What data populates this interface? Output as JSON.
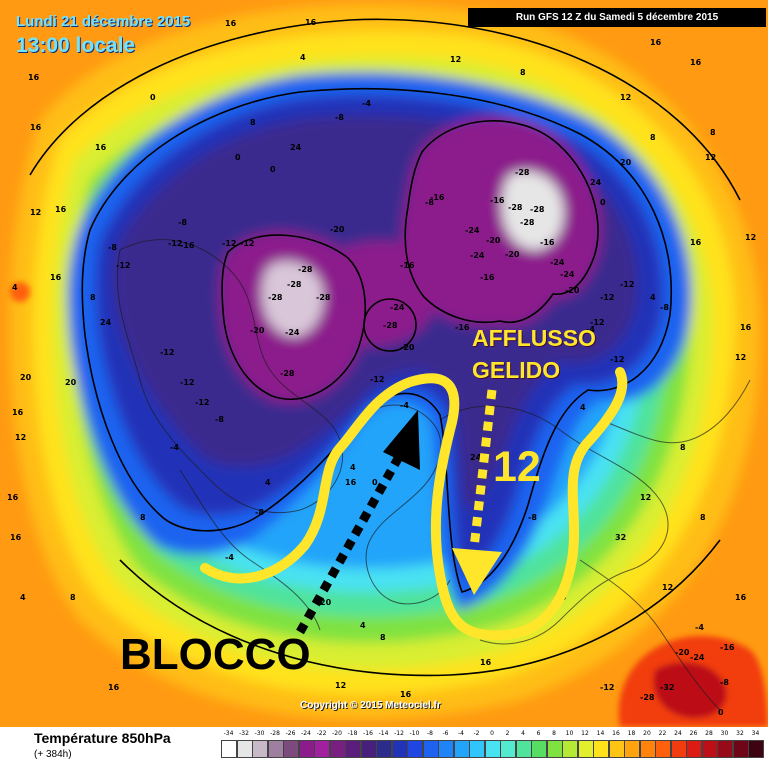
{
  "header": {
    "date": "Lundi 21 décembre 2015",
    "time": "13:00 locale",
    "run": "Run GFS 12 Z du Samedi 5 décembre 2015"
  },
  "copyright": "Copyright © 2015 Meteociel.fr",
  "annotations": {
    "inflow_line1": "AFFLUSSO",
    "inflow_line2": "GELIDO",
    "isotherm_value": "12",
    "block_label": "BLOCCO"
  },
  "colors": {
    "annotation_yellow": "#ffe62b",
    "annotation_black": "#000000",
    "header_cyan": "#6fe3ff"
  },
  "map_labels": [
    "16",
    "16",
    "16",
    "16",
    "16",
    "16",
    "16",
    "16",
    "16",
    "16",
    "16",
    "12",
    "12",
    "12",
    "12",
    "12",
    "12",
    "12",
    "8",
    "8",
    "8",
    "8",
    "8",
    "8",
    "8",
    "4",
    "4",
    "4",
    "4",
    "4",
    "0",
    "0",
    "0",
    "0",
    "-4",
    "-4",
    "-4",
    "-4",
    "-4",
    "-8",
    "-8",
    "-8",
    "-8",
    "-8",
    "-8",
    "-8",
    "-8",
    "-12",
    "-12",
    "-12",
    "-12",
    "-12",
    "-12",
    "-12",
    "-12",
    "-12",
    "-12",
    "-12",
    "-12",
    "-16",
    "-16",
    "-16",
    "-16",
    "-16",
    "-16",
    "-16",
    "-20",
    "-20",
    "-20",
    "-20",
    "-20",
    "-20",
    "-24",
    "-24",
    "-24",
    "-24",
    "-24",
    "-24",
    "-28",
    "-28",
    "-28",
    "-28",
    "-28",
    "-28",
    "-28",
    "-28",
    "-28",
    "-28",
    "-32",
    "-28",
    "-24",
    "-20",
    "-16",
    "-12",
    "-8",
    "-4",
    "0",
    "4",
    "8",
    "12",
    "16",
    "20",
    "24",
    "24",
    "20",
    "20",
    "24",
    "24",
    "32",
    "12",
    "16",
    "20",
    "20",
    "12",
    "8",
    "4",
    "8",
    "4",
    "0",
    "16",
    "16",
    "16",
    "16",
    "16",
    "16",
    "16",
    "12",
    "12",
    "12",
    "12"
  ],
  "legend": {
    "title": "Température 850hPa",
    "lead": "(+ 384h)",
    "scale": [
      {
        "value": "-34",
        "color": "#ffffff"
      },
      {
        "value": "-32",
        "color": "#e6e6e6"
      },
      {
        "value": "-30",
        "color": "#c7b9c7"
      },
      {
        "value": "-28",
        "color": "#9f7f9f"
      },
      {
        "value": "-26",
        "color": "#7d4a7d"
      },
      {
        "value": "-24",
        "color": "#8c1c8c"
      },
      {
        "value": "-22",
        "color": "#a020a0"
      },
      {
        "value": "-20",
        "color": "#7a1f82"
      },
      {
        "value": "-18",
        "color": "#5b1e7c"
      },
      {
        "value": "-16",
        "color": "#46207a"
      },
      {
        "value": "-14",
        "color": "#2c2c8c"
      },
      {
        "value": "-12",
        "color": "#2233b8"
      },
      {
        "value": "-10",
        "color": "#1f46e0"
      },
      {
        "value": "-8",
        "color": "#1e63f0"
      },
      {
        "value": "-6",
        "color": "#1e84f7"
      },
      {
        "value": "-4",
        "color": "#22a4fa"
      },
      {
        "value": "-2",
        "color": "#30c6fb"
      },
      {
        "value": "0",
        "color": "#48e2f2"
      },
      {
        "value": "2",
        "color": "#54ead0"
      },
      {
        "value": "4",
        "color": "#4fe39c"
      },
      {
        "value": "6",
        "color": "#57dc64"
      },
      {
        "value": "8",
        "color": "#7fe23f"
      },
      {
        "value": "10",
        "color": "#b4ea34"
      },
      {
        "value": "12",
        "color": "#e3ef2d"
      },
      {
        "value": "14",
        "color": "#ffe21c"
      },
      {
        "value": "16",
        "color": "#ffc414"
      },
      {
        "value": "18",
        "color": "#ffa40f"
      },
      {
        "value": "20",
        "color": "#ff830c"
      },
      {
        "value": "22",
        "color": "#ff600c"
      },
      {
        "value": "24",
        "color": "#f23c10"
      },
      {
        "value": "26",
        "color": "#dc1c14"
      },
      {
        "value": "28",
        "color": "#bc0f18"
      },
      {
        "value": "30",
        "color": "#960a1a"
      },
      {
        "value": "32",
        "color": "#6e0617"
      },
      {
        "value": "34",
        "color": "#3e0310"
      }
    ]
  }
}
